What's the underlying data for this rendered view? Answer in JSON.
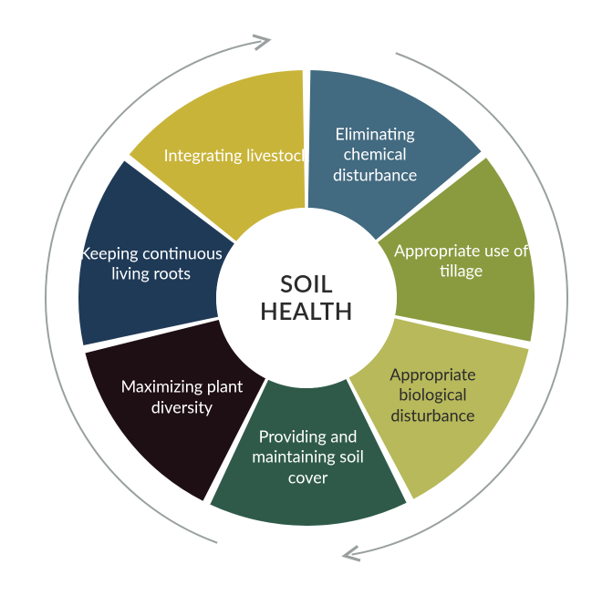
{
  "chart": {
    "type": "donut",
    "center_label": "SOIL\nHEALTH",
    "center_fontsize": 26,
    "center_color": "#2b2b2b",
    "background_color": "#ffffff",
    "outer_radius": 250,
    "inner_radius": 99,
    "gap_deg": 2,
    "segments": [
      {
        "label": "Eliminating chemical disturbance",
        "color": "#426a80",
        "text_color": "#ffffff",
        "start_deg": 1,
        "end_deg": 50
      },
      {
        "label": "Appropriate use of tillage",
        "color": "#8a9a3f",
        "text_color": "#ffffff",
        "start_deg": 52,
        "end_deg": 101
      },
      {
        "label": "Appropriate biological disturbance",
        "color": "#b7b95b",
        "text_color": "#2b2b2b",
        "start_deg": 103,
        "end_deg": 152
      },
      {
        "label": "Providing and maintaining soil cover",
        "color": "#2f5a4a",
        "text_color": "#ffffff",
        "start_deg": 154,
        "end_deg": 205
      },
      {
        "label": "Maximizing plant diversity",
        "color": "#1e0f14",
        "text_color": "#ffffff",
        "start_deg": 207,
        "end_deg": 256
      },
      {
        "label": "Keeping continuous living roots",
        "color": "#1f3a57",
        "text_color": "#ffffff",
        "start_deg": 258,
        "end_deg": 307
      },
      {
        "label": "Integrating livestock",
        "color": "#c9b43a",
        "text_color": "#ffffff",
        "start_deg": 309,
        "end_deg": 359
      }
    ],
    "segment_label_fontsize": 18,
    "outer_arrow": {
      "stroke": "#9aa0a0",
      "width": 2,
      "radius": 286
    }
  }
}
